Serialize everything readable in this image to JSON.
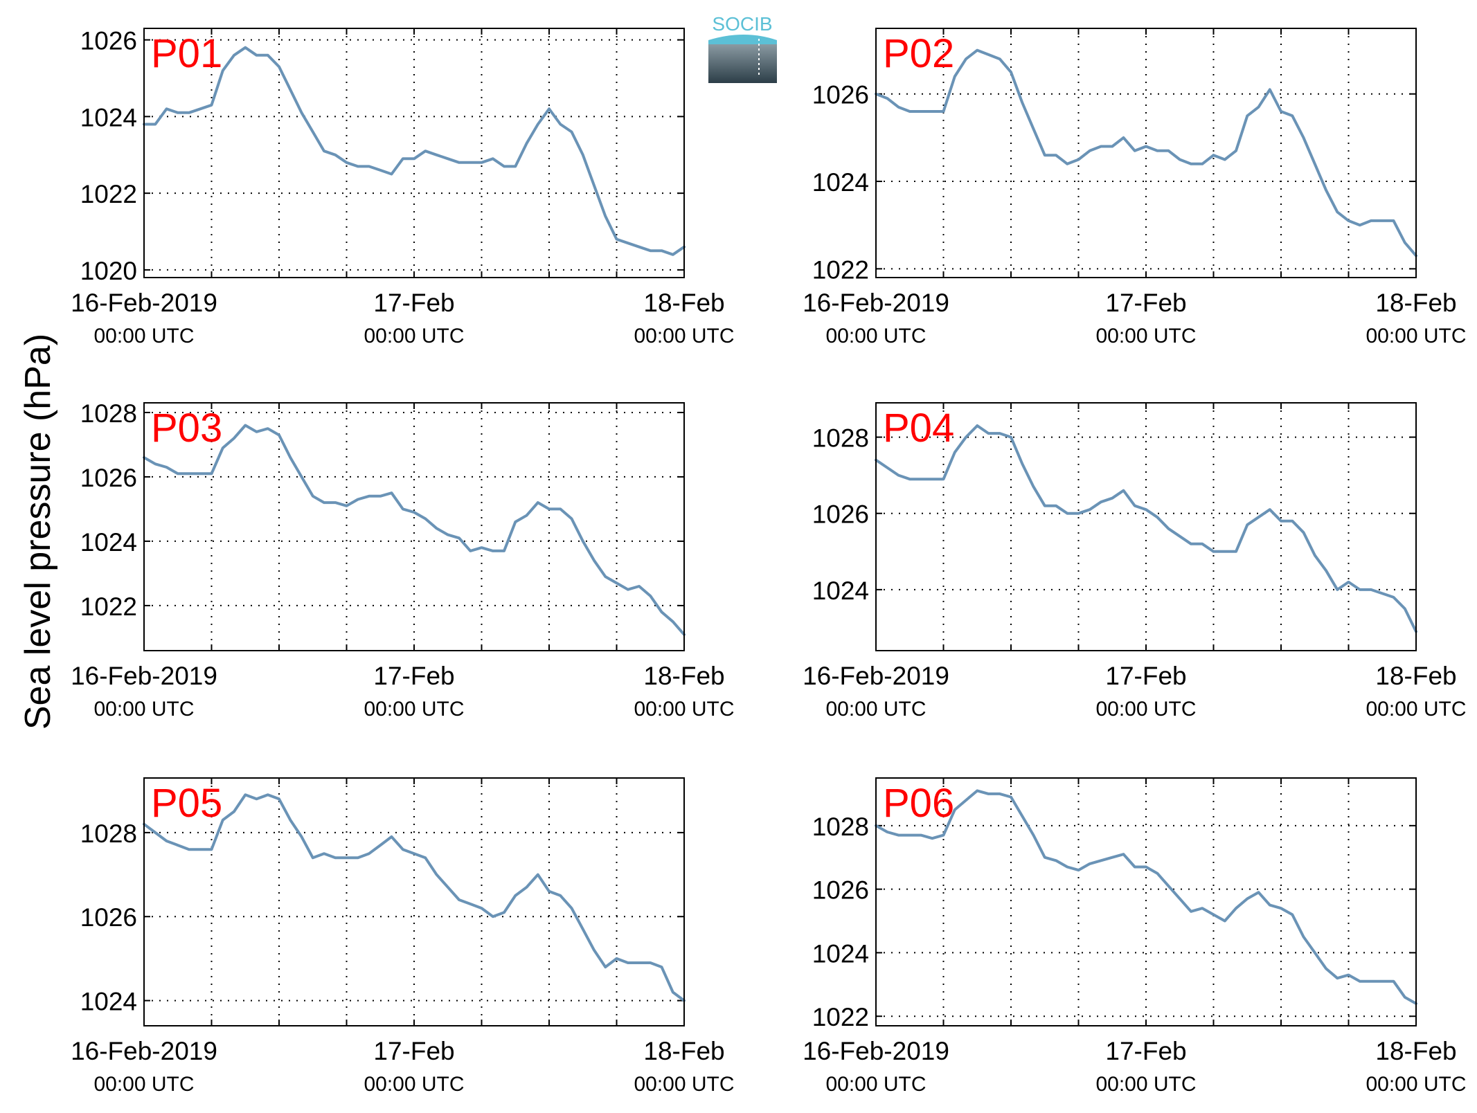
{
  "figure": {
    "ylabel": "Sea level pressure (hPa)",
    "logo_text": "SOCIB",
    "colors": {
      "line": "#6a93b6",
      "tag": "#ff0000",
      "grid": "#000000",
      "axis": "#000000",
      "logo_top": "#5cc0d6",
      "logo_dark": "#2c3e48"
    },
    "grid": "dotted",
    "legend": "none"
  },
  "chart_data": [
    {
      "type": "line",
      "label": "P01",
      "xlabels": [
        {
          "top": "16-Feb-2019",
          "bottom": "00:00 UTC"
        },
        {
          "top": "17-Feb",
          "bottom": "00:00 UTC"
        },
        {
          "top": "18-Feb",
          "bottom": "00:00 UTC"
        }
      ],
      "xlim": [
        0,
        48
      ],
      "ylim": [
        1019.8,
        1026.3
      ],
      "yticks": [
        1020,
        1022,
        1024,
        1026
      ],
      "x": [
        0,
        1,
        2,
        3,
        4,
        5,
        6,
        7,
        8,
        9,
        10,
        11,
        12,
        13,
        14,
        15,
        16,
        17,
        18,
        19,
        20,
        21,
        22,
        23,
        24,
        25,
        26,
        27,
        28,
        29,
        30,
        31,
        32,
        33,
        34,
        35,
        36,
        37,
        38,
        39,
        40,
        41,
        42,
        43,
        44,
        45,
        46,
        47,
        48
      ],
      "y": [
        1023.8,
        1023.8,
        1024.2,
        1024.1,
        1024.1,
        1024.2,
        1024.3,
        1025.2,
        1025.6,
        1025.8,
        1025.6,
        1025.6,
        1025.3,
        1024.7,
        1024.1,
        1023.6,
        1023.1,
        1023.0,
        1022.8,
        1022.7,
        1022.7,
        1022.6,
        1022.5,
        1022.9,
        1022.9,
        1023.1,
        1023.0,
        1022.9,
        1022.8,
        1022.8,
        1022.8,
        1022.9,
        1022.7,
        1022.7,
        1023.3,
        1023.8,
        1024.2,
        1023.8,
        1023.6,
        1023.0,
        1022.2,
        1021.4,
        1020.8,
        1020.7,
        1020.6,
        1020.5,
        1020.5,
        1020.4,
        1020.6
      ]
    },
    {
      "type": "line",
      "label": "P02",
      "xlabels": [
        {
          "top": "16-Feb-2019",
          "bottom": "00:00 UTC"
        },
        {
          "top": "17-Feb",
          "bottom": "00:00 UTC"
        },
        {
          "top": "18-Feb",
          "bottom": "00:00 UTC"
        }
      ],
      "xlim": [
        0,
        48
      ],
      "ylim": [
        1021.8,
        1027.5
      ],
      "yticks": [
        1022,
        1024,
        1026
      ],
      "x": [
        0,
        1,
        2,
        3,
        4,
        5,
        6,
        7,
        8,
        9,
        10,
        11,
        12,
        13,
        14,
        15,
        16,
        17,
        18,
        19,
        20,
        21,
        22,
        23,
        24,
        25,
        26,
        27,
        28,
        29,
        30,
        31,
        32,
        33,
        34,
        35,
        36,
        37,
        38,
        39,
        40,
        41,
        42,
        43,
        44,
        45,
        46,
        47,
        48
      ],
      "y": [
        1026.0,
        1025.9,
        1025.7,
        1025.6,
        1025.6,
        1025.6,
        1025.6,
        1026.4,
        1026.8,
        1027.0,
        1026.9,
        1026.8,
        1026.5,
        1025.8,
        1025.2,
        1024.6,
        1024.6,
        1024.4,
        1024.5,
        1024.7,
        1024.8,
        1024.8,
        1025.0,
        1024.7,
        1024.8,
        1024.7,
        1024.7,
        1024.5,
        1024.4,
        1024.4,
        1024.6,
        1024.5,
        1024.7,
        1025.5,
        1025.7,
        1026.1,
        1025.6,
        1025.5,
        1025.0,
        1024.4,
        1023.8,
        1023.3,
        1023.1,
        1023.0,
        1023.1,
        1023.1,
        1023.1,
        1022.6,
        1022.3
      ]
    },
    {
      "type": "line",
      "label": "P03",
      "xlabels": [
        {
          "top": "16-Feb-2019",
          "bottom": "00:00 UTC"
        },
        {
          "top": "17-Feb",
          "bottom": "00:00 UTC"
        },
        {
          "top": "18-Feb",
          "bottom": "00:00 UTC"
        }
      ],
      "xlim": [
        0,
        48
      ],
      "ylim": [
        1020.6,
        1028.3
      ],
      "yticks": [
        1022,
        1024,
        1026,
        1028
      ],
      "x": [
        0,
        1,
        2,
        3,
        4,
        5,
        6,
        7,
        8,
        9,
        10,
        11,
        12,
        13,
        14,
        15,
        16,
        17,
        18,
        19,
        20,
        21,
        22,
        23,
        24,
        25,
        26,
        27,
        28,
        29,
        30,
        31,
        32,
        33,
        34,
        35,
        36,
        37,
        38,
        39,
        40,
        41,
        42,
        43,
        44,
        45,
        46,
        47,
        48
      ],
      "y": [
        1026.6,
        1026.4,
        1026.3,
        1026.1,
        1026.1,
        1026.1,
        1026.1,
        1026.9,
        1027.2,
        1027.6,
        1027.4,
        1027.5,
        1027.3,
        1026.6,
        1026.0,
        1025.4,
        1025.2,
        1025.2,
        1025.1,
        1025.3,
        1025.4,
        1025.4,
        1025.5,
        1025.0,
        1024.9,
        1024.7,
        1024.4,
        1024.2,
        1024.1,
        1023.7,
        1023.8,
        1023.7,
        1023.7,
        1024.6,
        1024.8,
        1025.2,
        1025.0,
        1025.0,
        1024.7,
        1024.0,
        1023.4,
        1022.9,
        1022.7,
        1022.5,
        1022.6,
        1022.3,
        1021.8,
        1021.5,
        1021.1
      ]
    },
    {
      "type": "line",
      "label": "P04",
      "xlabels": [
        {
          "top": "16-Feb-2019",
          "bottom": "00:00 UTC"
        },
        {
          "top": "17-Feb",
          "bottom": "00:00 UTC"
        },
        {
          "top": "18-Feb",
          "bottom": "00:00 UTC"
        }
      ],
      "xlim": [
        0,
        48
      ],
      "ylim": [
        1022.4,
        1028.9
      ],
      "yticks": [
        1024,
        1026,
        1028
      ],
      "x": [
        0,
        1,
        2,
        3,
        4,
        5,
        6,
        7,
        8,
        9,
        10,
        11,
        12,
        13,
        14,
        15,
        16,
        17,
        18,
        19,
        20,
        21,
        22,
        23,
        24,
        25,
        26,
        27,
        28,
        29,
        30,
        31,
        32,
        33,
        34,
        35,
        36,
        37,
        38,
        39,
        40,
        41,
        42,
        43,
        44,
        45,
        46,
        47,
        48
      ],
      "y": [
        1027.4,
        1027.2,
        1027.0,
        1026.9,
        1026.9,
        1026.9,
        1026.9,
        1027.6,
        1028.0,
        1028.3,
        1028.1,
        1028.1,
        1028.0,
        1027.3,
        1026.7,
        1026.2,
        1026.2,
        1026.0,
        1026.0,
        1026.1,
        1026.3,
        1026.4,
        1026.6,
        1026.2,
        1026.1,
        1025.9,
        1025.6,
        1025.4,
        1025.2,
        1025.2,
        1025.0,
        1025.0,
        1025.0,
        1025.7,
        1025.9,
        1026.1,
        1025.8,
        1025.8,
        1025.5,
        1024.9,
        1024.5,
        1024.0,
        1024.2,
        1024.0,
        1024.0,
        1023.9,
        1023.8,
        1023.5,
        1022.9
      ]
    },
    {
      "type": "line",
      "label": "P05",
      "xlabels": [
        {
          "top": "16-Feb-2019",
          "bottom": "00:00 UTC"
        },
        {
          "top": "17-Feb",
          "bottom": "00:00 UTC"
        },
        {
          "top": "18-Feb",
          "bottom": "00:00 UTC"
        }
      ],
      "xlim": [
        0,
        48
      ],
      "ylim": [
        1023.4,
        1029.3
      ],
      "yticks": [
        1024,
        1026,
        1028
      ],
      "x": [
        0,
        1,
        2,
        3,
        4,
        5,
        6,
        7,
        8,
        9,
        10,
        11,
        12,
        13,
        14,
        15,
        16,
        17,
        18,
        19,
        20,
        21,
        22,
        23,
        24,
        25,
        26,
        27,
        28,
        29,
        30,
        31,
        32,
        33,
        34,
        35,
        36,
        37,
        38,
        39,
        40,
        41,
        42,
        43,
        44,
        45,
        46,
        47,
        48
      ],
      "y": [
        1028.2,
        1028.0,
        1027.8,
        1027.7,
        1027.6,
        1027.6,
        1027.6,
        1028.3,
        1028.5,
        1028.9,
        1028.8,
        1028.9,
        1028.8,
        1028.3,
        1027.9,
        1027.4,
        1027.5,
        1027.4,
        1027.4,
        1027.4,
        1027.5,
        1027.7,
        1027.9,
        1027.6,
        1027.5,
        1027.4,
        1027.0,
        1026.7,
        1026.4,
        1026.3,
        1026.2,
        1026.0,
        1026.1,
        1026.5,
        1026.7,
        1027.0,
        1026.6,
        1026.5,
        1026.2,
        1025.7,
        1025.2,
        1024.8,
        1025.0,
        1024.9,
        1024.9,
        1024.9,
        1024.8,
        1024.2,
        1024.0
      ]
    },
    {
      "type": "line",
      "label": "P06",
      "xlabels": [
        {
          "top": "16-Feb-2019",
          "bottom": "00:00 UTC"
        },
        {
          "top": "17-Feb",
          "bottom": "00:00 UTC"
        },
        {
          "top": "18-Feb",
          "bottom": "00:00 UTC"
        }
      ],
      "xlim": [
        0,
        48
      ],
      "ylim": [
        1021.7,
        1029.5
      ],
      "yticks": [
        1022,
        1024,
        1026,
        1028
      ],
      "x": [
        0,
        1,
        2,
        3,
        4,
        5,
        6,
        7,
        8,
        9,
        10,
        11,
        12,
        13,
        14,
        15,
        16,
        17,
        18,
        19,
        20,
        21,
        22,
        23,
        24,
        25,
        26,
        27,
        28,
        29,
        30,
        31,
        32,
        33,
        34,
        35,
        36,
        37,
        38,
        39,
        40,
        41,
        42,
        43,
        44,
        45,
        46,
        47,
        48
      ],
      "y": [
        1028.0,
        1027.8,
        1027.7,
        1027.7,
        1027.7,
        1027.6,
        1027.7,
        1028.5,
        1028.8,
        1029.1,
        1029.0,
        1029.0,
        1028.9,
        1028.3,
        1027.7,
        1027.0,
        1026.9,
        1026.7,
        1026.6,
        1026.8,
        1026.9,
        1027.0,
        1027.1,
        1026.7,
        1026.7,
        1026.5,
        1026.1,
        1025.7,
        1025.3,
        1025.4,
        1025.2,
        1025.0,
        1025.4,
        1025.7,
        1025.9,
        1025.5,
        1025.4,
        1025.2,
        1024.5,
        1024.0,
        1023.5,
        1023.2,
        1023.3,
        1023.1,
        1023.1,
        1023.1,
        1023.1,
        1022.6,
        1022.4
      ]
    }
  ]
}
